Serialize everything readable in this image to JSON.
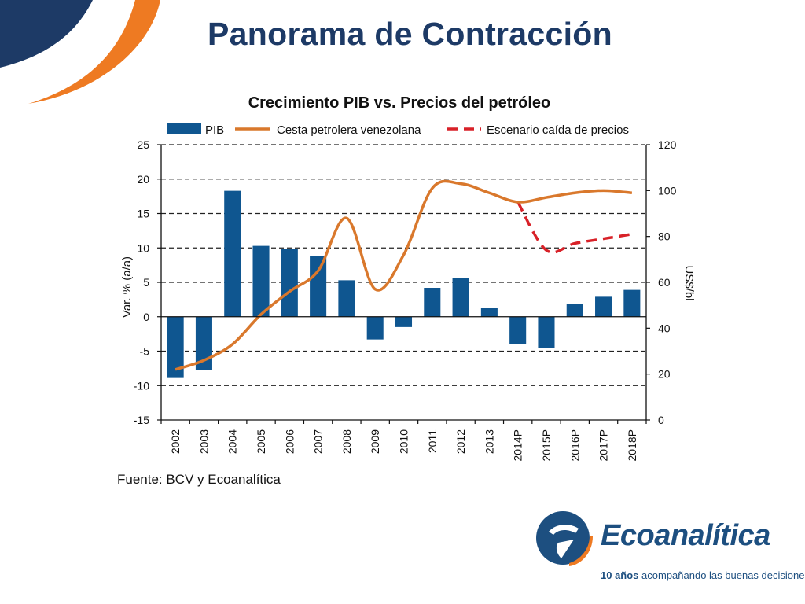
{
  "slide": {
    "title": "Panorama de Contracción",
    "source": "Fuente: BCV y Ecoanalítica"
  },
  "logo": {
    "wordmark": "Ecoanalítica",
    "tagline_bold": "10 años",
    "tagline_rest": " acompañando las buenas decisiones"
  },
  "colors": {
    "navy": "#1d3a66",
    "bar": "#0f5690",
    "line": "#d9782c",
    "scenario": "#d82128",
    "accent_orange": "#ee7a22"
  },
  "chart_data": {
    "type": "bar",
    "title": "Crecimiento PIB vs. Precios del petróleo",
    "ylabel": "Var. % (a/a)",
    "y2label": "US$/bl",
    "ylim": [
      -15,
      25
    ],
    "y2lim": [
      0,
      120
    ],
    "yticks": [
      "-15",
      "-10",
      "-5",
      "0",
      "5",
      "10",
      "15",
      "20",
      "25"
    ],
    "y2ticks": [
      "0",
      "20",
      "40",
      "60",
      "80",
      "100",
      "120"
    ],
    "grid": "horizontal dashed",
    "legend_position": "top",
    "categories": [
      "2002",
      "2003",
      "2004",
      "2005",
      "2006",
      "2007",
      "2008",
      "2009",
      "2010",
      "2011",
      "2012",
      "2013",
      "2014P",
      "2015P",
      "2016P",
      "2017P",
      "2018P"
    ],
    "series": [
      {
        "name": "PIB",
        "kind": "bar",
        "axis": "left",
        "values": [
          -8.9,
          -7.8,
          18.3,
          10.3,
          9.9,
          8.8,
          5.3,
          -3.3,
          -1.5,
          4.2,
          5.6,
          1.3,
          -4.0,
          -4.6,
          1.9,
          2.9,
          3.9
        ]
      },
      {
        "name": "Cesta petrolera venezolana",
        "kind": "line",
        "axis": "right",
        "values": [
          22,
          26,
          33,
          46,
          56,
          65,
          88,
          57,
          72,
          101,
          103,
          99,
          95,
          97,
          99,
          100,
          99
        ]
      },
      {
        "name": "Escenario caída de precios",
        "kind": "dashed-line",
        "axis": "right",
        "values": [
          null,
          null,
          null,
          null,
          null,
          null,
          null,
          null,
          null,
          null,
          null,
          null,
          95,
          74,
          77,
          79,
          81
        ]
      }
    ]
  }
}
